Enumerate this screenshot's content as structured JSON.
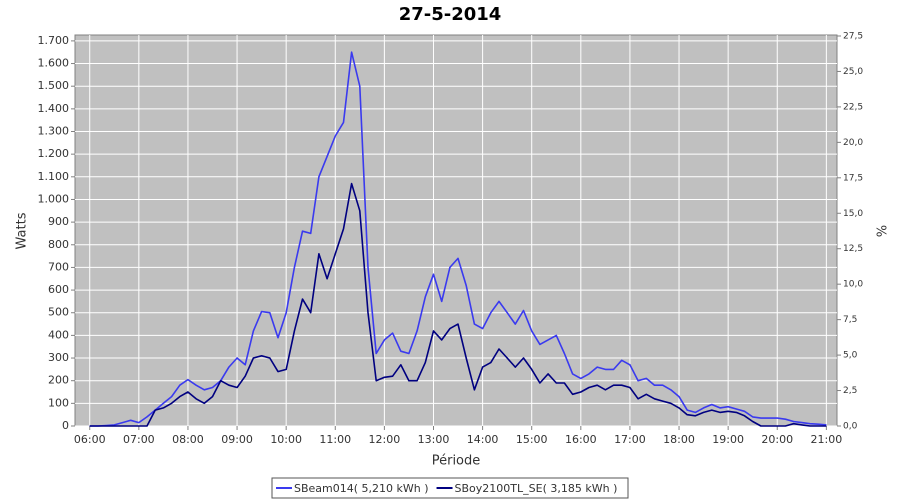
{
  "chart_data": {
    "type": "line",
    "title": "27-5-2014",
    "x_label": "Période",
    "y_label": "Watts",
    "y2_label": "%",
    "x": [
      360,
      370,
      380,
      390,
      400,
      410,
      420,
      430,
      440,
      450,
      460,
      470,
      480,
      490,
      500,
      510,
      520,
      530,
      540,
      550,
      560,
      570,
      580,
      590,
      600,
      610,
      620,
      630,
      640,
      650,
      660,
      670,
      680,
      690,
      700,
      710,
      720,
      730,
      740,
      750,
      760,
      770,
      780,
      790,
      800,
      810,
      820,
      830,
      840,
      850,
      860,
      870,
      880,
      890,
      900,
      910,
      920,
      930,
      940,
      950,
      960,
      970,
      980,
      990,
      1000,
      1010,
      1020,
      1030,
      1040,
      1050,
      1060,
      1070,
      1080,
      1090,
      1100,
      1110,
      1120,
      1130,
      1140,
      1150,
      1160,
      1170,
      1180,
      1190,
      1200,
      1210,
      1220,
      1230,
      1240,
      1250,
      1260
    ],
    "series": [
      {
        "name": "SBeam014( 5,210 kWh )",
        "color": "#3a3aef",
        "values": [
          0,
          0,
          2,
          5,
          15,
          25,
          15,
          40,
          70,
          100,
          130,
          180,
          205,
          180,
          160,
          170,
          200,
          260,
          300,
          270,
          420,
          505,
          500,
          390,
          500,
          700,
          860,
          850,
          1100,
          1190,
          1280,
          1340,
          1650,
          1500,
          700,
          320,
          380,
          410,
          330,
          320,
          420,
          570,
          670,
          550,
          700,
          740,
          620,
          450,
          430,
          500,
          550,
          500,
          450,
          510,
          420,
          360,
          380,
          400,
          320,
          230,
          210,
          230,
          260,
          250,
          250,
          290,
          270,
          200,
          210,
          180,
          180,
          160,
          130,
          70,
          60,
          80,
          95,
          80,
          85,
          75,
          65,
          40,
          35,
          35,
          35,
          30,
          20,
          15,
          10,
          8,
          5
        ]
      },
      {
        "name": "SBoy2100TL_SE( 3,185 kWh )",
        "color": "#000080",
        "values": [
          0,
          0,
          0,
          0,
          0,
          0,
          0,
          0,
          70,
          80,
          100,
          130,
          150,
          120,
          100,
          130,
          200,
          180,
          170,
          220,
          300,
          310,
          300,
          240,
          250,
          420,
          560,
          500,
          760,
          650,
          760,
          870,
          1070,
          950,
          500,
          200,
          215,
          220,
          270,
          200,
          200,
          280,
          420,
          380,
          430,
          450,
          300,
          160,
          260,
          280,
          340,
          300,
          260,
          300,
          250,
          190,
          230,
          190,
          190,
          140,
          150,
          170,
          180,
          160,
          180,
          180,
          170,
          120,
          140,
          120,
          110,
          100,
          80,
          50,
          45,
          60,
          70,
          60,
          65,
          60,
          45,
          20,
          0,
          0,
          0,
          0,
          10,
          5,
          0,
          0,
          0
        ]
      }
    ],
    "xlim": [
      342,
      1273
    ],
    "xticks": [
      {
        "value": 360,
        "label": "06:00"
      },
      {
        "value": 420,
        "label": "07:00"
      },
      {
        "value": 480,
        "label": "08:00"
      },
      {
        "value": 540,
        "label": "09:00"
      },
      {
        "value": 600,
        "label": "10:00"
      },
      {
        "value": 660,
        "label": "11:00"
      },
      {
        "value": 720,
        "label": "12:00"
      },
      {
        "value": 780,
        "label": "13:00"
      },
      {
        "value": 840,
        "label": "14:00"
      },
      {
        "value": 900,
        "label": "15:00"
      },
      {
        "value": 960,
        "label": "16:00"
      },
      {
        "value": 1020,
        "label": "17:00"
      },
      {
        "value": 1080,
        "label": "18:00"
      },
      {
        "value": 1140,
        "label": "19:00"
      },
      {
        "value": 1200,
        "label": "20:00"
      },
      {
        "value": 1260,
        "label": "21:00"
      }
    ],
    "ylim": [
      0,
      1726
    ],
    "yticks": [
      0,
      100,
      200,
      300,
      400,
      500,
      600,
      700,
      800,
      900,
      {
        "value": 1000,
        "label": "1.000"
      },
      {
        "value": 1100,
        "label": "1.100"
      },
      {
        "value": 1200,
        "label": "1.200"
      },
      {
        "value": 1300,
        "label": "1.300"
      },
      {
        "value": 1400,
        "label": "1.400"
      },
      {
        "value": 1500,
        "label": "1.500"
      },
      {
        "value": 1600,
        "label": "1.600"
      },
      {
        "value": 1700,
        "label": "1.700"
      }
    ],
    "y2lim": [
      0,
      27.57
    ],
    "y2ticks": [
      {
        "value": 0,
        "label": "0,0"
      },
      {
        "value": 2.5,
        "label": "2,5"
      },
      {
        "value": 5,
        "label": "5,0"
      },
      {
        "value": 7.5,
        "label": "7,5"
      },
      {
        "value": 10,
        "label": "10,0"
      },
      {
        "value": 12.5,
        "label": "12,5"
      },
      {
        "value": 15,
        "label": "15,0"
      },
      {
        "value": 17.5,
        "label": "17,5"
      },
      {
        "value": 20,
        "label": "20,0"
      },
      {
        "value": 22.5,
        "label": "22,5"
      },
      {
        "value": 25,
        "label": "25,0"
      },
      {
        "value": 27.5,
        "label": "27,5"
      }
    ],
    "grid": true,
    "legend": "bottom"
  }
}
